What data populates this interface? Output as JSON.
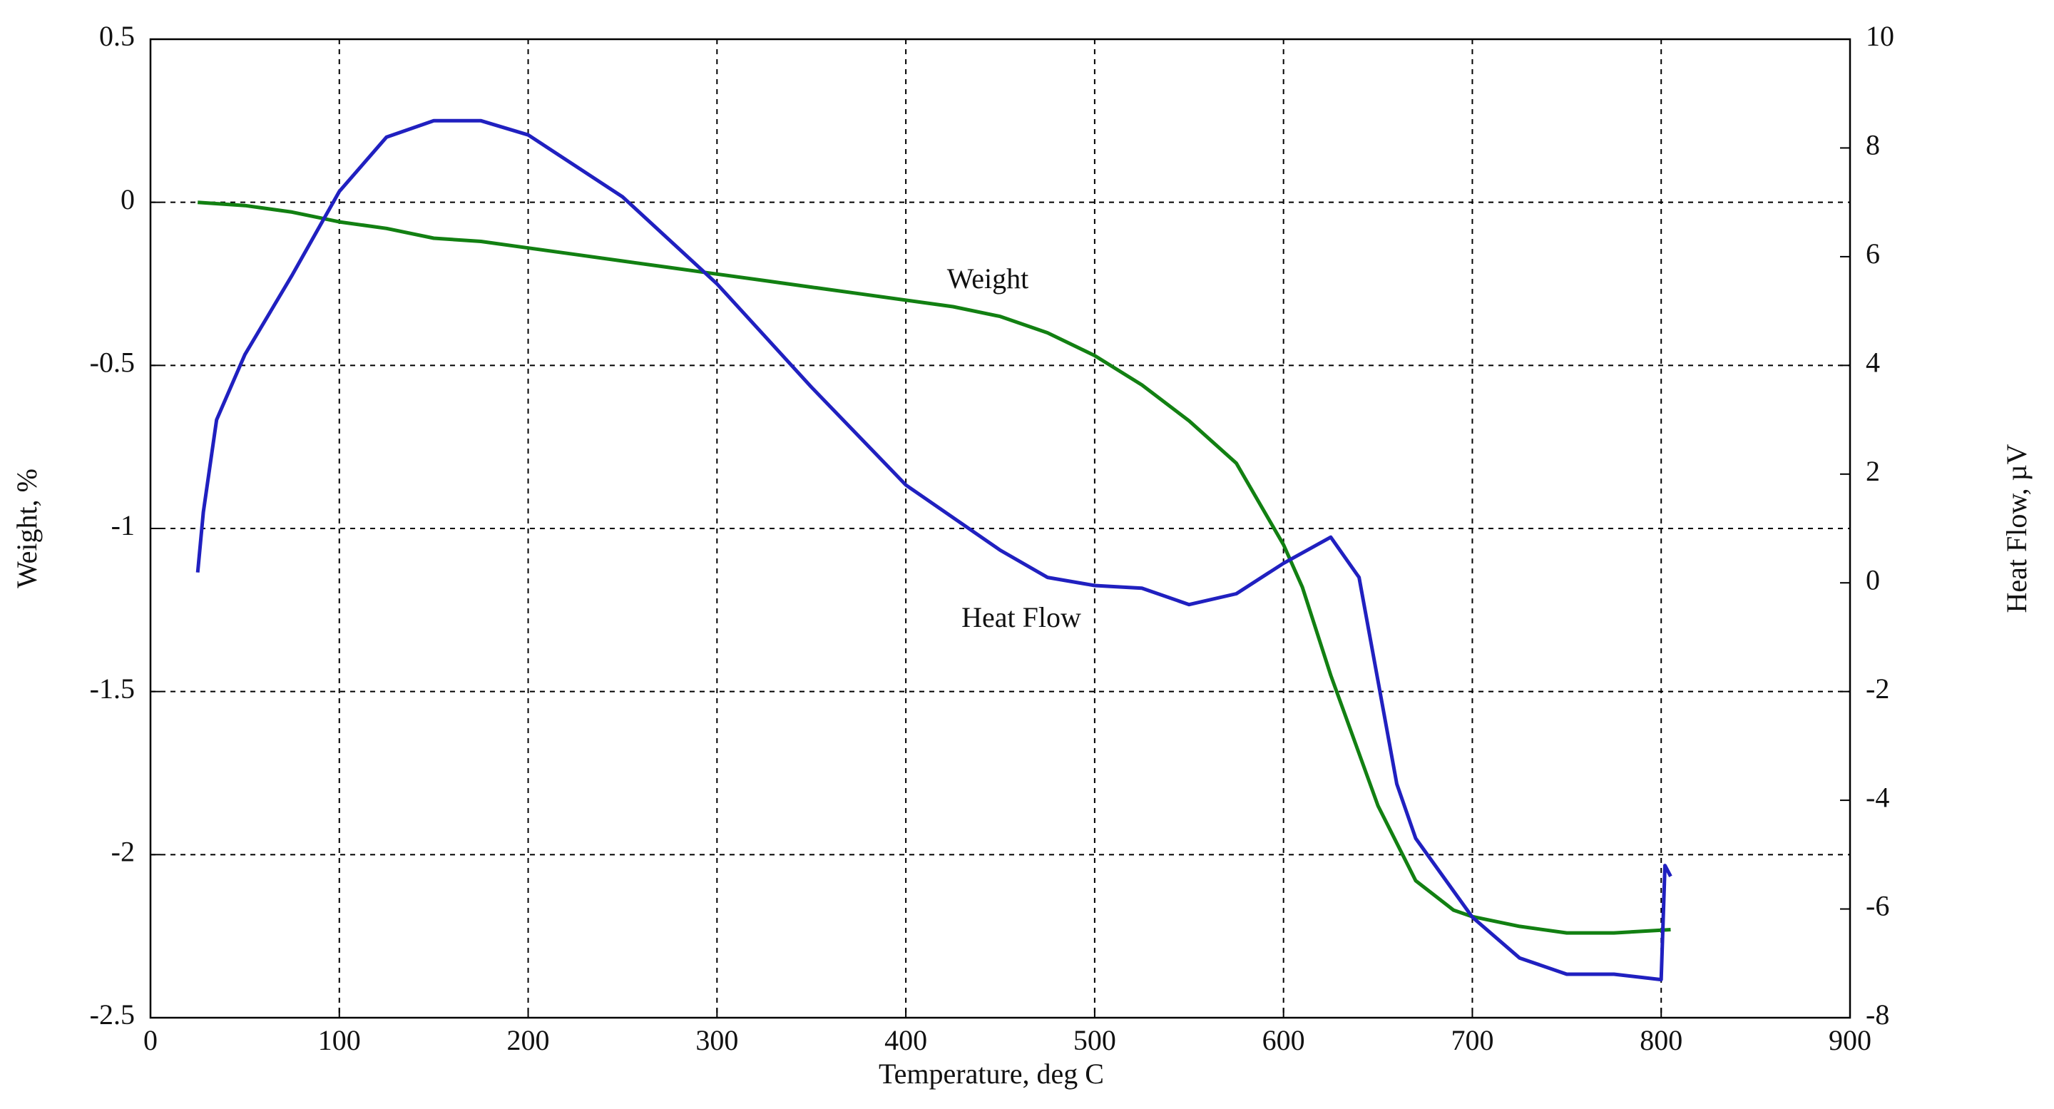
{
  "chart_data": {
    "type": "line",
    "xlabel": "Temperature, deg C",
    "ylabel": "Weight, %",
    "y2label": "Heat Flow, µV",
    "annotations": [
      "Weight",
      "Heat Flow"
    ],
    "xlim": [
      0,
      900
    ],
    "xticks": [
      0,
      100,
      200,
      300,
      400,
      500,
      600,
      700,
      800,
      900
    ],
    "ylim": [
      -2.5,
      0.5
    ],
    "yticks": [
      -2.5,
      -2,
      -1.5,
      -1,
      -0.5,
      0,
      0.5
    ],
    "y2lim": [
      -8,
      10
    ],
    "y2ticks": [
      -8,
      -6,
      -4,
      -2,
      0,
      2,
      4,
      6,
      8,
      10
    ],
    "grid": true,
    "series": [
      {
        "name": "Weight",
        "color": "#128012",
        "x": [
          25,
          50,
          75,
          100,
          125,
          150,
          175,
          200,
          225,
          250,
          275,
          300,
          325,
          350,
          375,
          400,
          425,
          450,
          475,
          500,
          525,
          550,
          575,
          600,
          610,
          625,
          650,
          670,
          690,
          700,
          725,
          750,
          775,
          805
        ],
        "values": [
          0,
          -0.01,
          -0.03,
          -0.06,
          -0.08,
          -0.11,
          -0.12,
          -0.14,
          -0.16,
          -0.18,
          -0.2,
          -0.22,
          -0.24,
          -0.26,
          -0.28,
          -0.3,
          -0.32,
          -0.35,
          -0.4,
          -0.47,
          -0.56,
          -0.67,
          -0.8,
          -1.05,
          -1.18,
          -1.45,
          -1.85,
          -2.08,
          -2.17,
          -2.19,
          -2.22,
          -2.24,
          -2.24,
          -2.23
        ]
      },
      {
        "name": "Heat Flow",
        "color": "#2020c0",
        "axis": "y2",
        "x": [
          25,
          28,
          35,
          50,
          75,
          100,
          125,
          150,
          175,
          200,
          250,
          300,
          350,
          400,
          450,
          475,
          500,
          525,
          550,
          575,
          600,
          625,
          640,
          650,
          660,
          670,
          700,
          725,
          750,
          775,
          800,
          802,
          805
        ],
        "values": [
          0.19,
          1.3,
          3.0,
          4.2,
          5.66,
          7.2,
          8.2,
          8.5,
          8.5,
          8.24,
          7.1,
          5.5,
          3.6,
          1.8,
          0.6,
          0.1,
          -0.05,
          -0.1,
          -0.4,
          -0.2,
          0.36,
          0.84,
          0.1,
          -1.8,
          -3.7,
          -4.7,
          -6.15,
          -6.9,
          -7.2,
          -7.2,
          -7.3,
          -5.2,
          -5.4
        ]
      }
    ]
  }
}
